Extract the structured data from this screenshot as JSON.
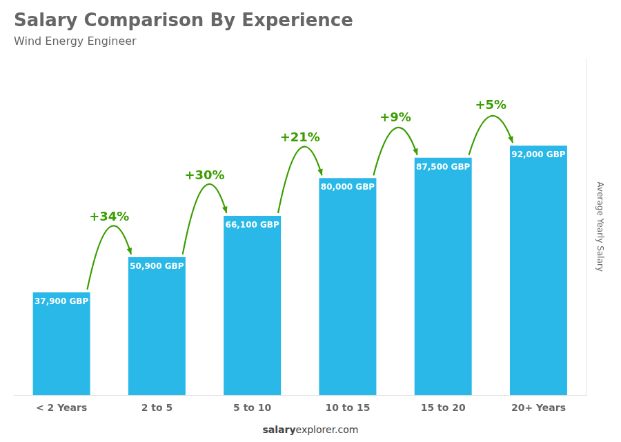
{
  "chart_data": {
    "type": "bar",
    "title": "Salary Comparison By Experience",
    "subtitle": "Wind Energy Engineer",
    "y_label": "Average Yearly Salary",
    "categories": [
      "< 2 Years",
      "2 to 5",
      "5 to 10",
      "10 to 15",
      "15 to 20",
      "20+ Years"
    ],
    "values": [
      37900,
      50900,
      66100,
      80000,
      87500,
      92000
    ],
    "value_labels": [
      "37,900 GBP",
      "50,900 GBP",
      "66,100 GBP",
      "80,000 GBP",
      "87,500 GBP",
      "92,000 GBP"
    ],
    "data_labels": true,
    "annotations": [
      "+34%",
      "+30%",
      "+21%",
      "+9%",
      "+5%"
    ],
    "footer": [
      "salary",
      "explorer.com"
    ],
    "color": "#29b8e8",
    "ylim": [
      0,
      124200
    ],
    "tick_labels": "x",
    "grid": false
  }
}
